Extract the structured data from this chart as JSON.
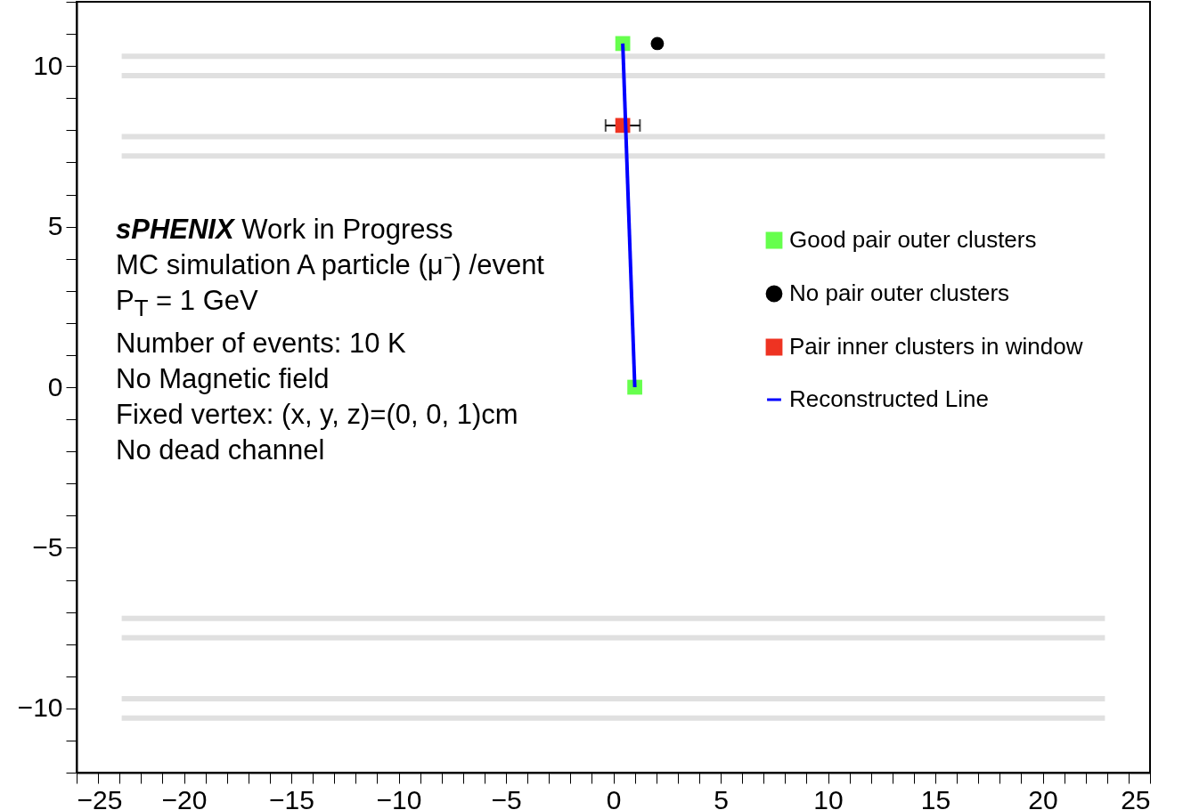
{
  "chart_data": {
    "type": "scatter",
    "xlim": [
      -25,
      25
    ],
    "ylim": [
      -12,
      12
    ],
    "xticks": [
      -25,
      {
        "value": -24,
        "label": null
      },
      {
        "value": -23,
        "label": null
      },
      {
        "value": -22,
        "label": null
      },
      {
        "value": -21,
        "label": null
      },
      -20,
      {
        "value": -19,
        "label": null
      },
      {
        "value": -18,
        "label": null
      },
      {
        "value": -17,
        "label": null
      },
      {
        "value": -16,
        "label": null
      },
      -15,
      {
        "value": -14,
        "label": null
      },
      {
        "value": -13,
        "label": null
      },
      {
        "value": -12,
        "label": null
      },
      {
        "value": -11,
        "label": null
      },
      -10,
      {
        "value": -9,
        "label": null
      },
      {
        "value": -8,
        "label": null
      },
      {
        "value": -7,
        "label": null
      },
      {
        "value": -6,
        "label": null
      },
      -5,
      {
        "value": -4,
        "label": null
      },
      {
        "value": -3,
        "label": null
      },
      {
        "value": -2,
        "label": null
      },
      {
        "value": -1,
        "label": null
      },
      0,
      {
        "value": 1,
        "label": null
      },
      {
        "value": 2,
        "label": null
      },
      {
        "value": 3,
        "label": null
      },
      {
        "value": 4,
        "label": null
      },
      5,
      {
        "value": 6,
        "label": null
      },
      {
        "value": 7,
        "label": null
      },
      {
        "value": 8,
        "label": null
      },
      {
        "value": 9,
        "label": null
      },
      10,
      {
        "value": 11,
        "label": null
      },
      {
        "value": 12,
        "label": null
      },
      {
        "value": 13,
        "label": null
      },
      {
        "value": 14,
        "label": null
      },
      15,
      {
        "value": 16,
        "label": null
      },
      {
        "value": 17,
        "label": null
      },
      {
        "value": 18,
        "label": null
      },
      {
        "value": 19,
        "label": null
      },
      20,
      {
        "value": 21,
        "label": null
      },
      {
        "value": 22,
        "label": null
      },
      {
        "value": 23,
        "label": null
      },
      {
        "value": 24,
        "label": null
      },
      25
    ],
    "yticks": [
      {
        "value": -12,
        "label": null
      },
      {
        "value": -11,
        "label": null
      },
      -10,
      {
        "value": -9,
        "label": null
      },
      {
        "value": -8,
        "label": null
      },
      {
        "value": -7,
        "label": null
      },
      {
        "value": -6,
        "label": null
      },
      -5,
      {
        "value": -4,
        "label": null
      },
      {
        "value": -3,
        "label": null
      },
      {
        "value": -2,
        "label": null
      },
      {
        "value": -1,
        "label": null
      },
      0,
      {
        "value": 1,
        "label": null
      },
      {
        "value": 2,
        "label": null
      },
      {
        "value": 3,
        "label": null
      },
      {
        "value": 4,
        "label": null
      },
      5,
      {
        "value": 6,
        "label": null
      },
      {
        "value": 7,
        "label": null
      },
      {
        "value": 8,
        "label": null
      },
      {
        "value": 9,
        "label": null
      },
      10,
      {
        "value": 11,
        "label": null
      },
      {
        "value": 12,
        "label": null
      }
    ],
    "grid": false,
    "legend": "right",
    "annotations": [
      "sPHENIX Work in Progress",
      "MC simulation A particle (μ⁻) /event",
      "P$_{T}$ = 1 GeV",
      "Number of events: 10 K",
      "No Magnetic field",
      "Fixed vertex: (x, y, z)=(0, 0, 1)cm",
      "No dead channel"
    ],
    "series": [
      {
        "type": "line",
        "color": "#e0e0e0",
        "x": [
          -22.9,
          22.9
        ],
        "values": [
          10.3,
          10.3
        ]
      },
      {
        "type": "line",
        "color": "#e0e0e0",
        "x": [
          -22.9,
          22.9
        ],
        "values": [
          9.7,
          9.7
        ]
      },
      {
        "type": "line",
        "color": "#e0e0e0",
        "x": [
          -22.9,
          22.9
        ],
        "values": [
          7.8,
          7.8
        ]
      },
      {
        "type": "line",
        "color": "#e0e0e0",
        "x": [
          -22.9,
          22.9
        ],
        "values": [
          7.2,
          7.2
        ]
      },
      {
        "type": "line",
        "color": "#e0e0e0",
        "x": [
          -22.9,
          22.9
        ],
        "values": [
          -7.2,
          -7.2
        ]
      },
      {
        "type": "line",
        "color": "#e0e0e0",
        "x": [
          -22.9,
          22.9
        ],
        "values": [
          -7.8,
          -7.8
        ]
      },
      {
        "type": "line",
        "color": "#e0e0e0",
        "x": [
          -22.9,
          22.9
        ],
        "values": [
          -9.7,
          -9.7
        ]
      },
      {
        "type": "line",
        "color": "#e0e0e0",
        "x": [
          -22.9,
          22.9
        ],
        "values": [
          -10.3,
          -10.3
        ]
      },
      {
        "name": "Good pair outer clusters",
        "marker": "square",
        "color": "#66ff4d",
        "x": [
          0.44,
          1.0
        ],
        "values": [
          10.7,
          0
        ]
      },
      {
        "name": "No pair outer clusters",
        "marker": "circle",
        "color": "#000000",
        "x": [
          2.05
        ],
        "values": [
          10.7
        ]
      },
      {
        "name": "Pair inner clusters in window",
        "marker": "square",
        "color": "#ee3322",
        "x": [
          0.44
        ],
        "values": [
          8.15
        ],
        "xerrors": [
          0.8
        ]
      },
      {
        "name": "Reconstructed Line",
        "type": "line",
        "color": "#0000ff",
        "x": [
          0.44,
          1.0
        ],
        "values": [
          10.7,
          0
        ]
      }
    ]
  }
}
